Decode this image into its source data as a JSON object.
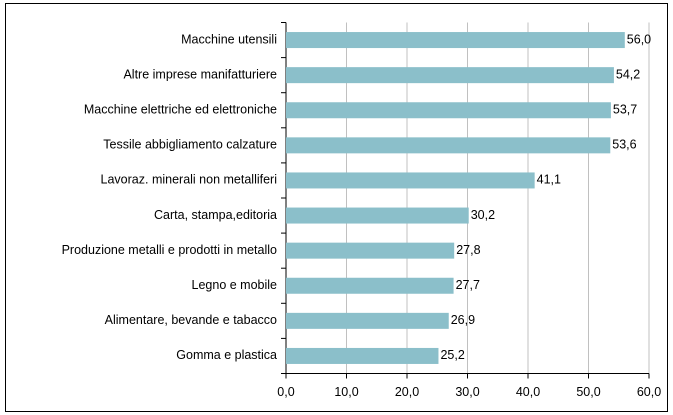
{
  "chart_data": {
    "type": "bar",
    "orientation": "horizontal",
    "categories": [
      "Macchine utensili",
      "Altre imprese manifatturiere",
      "Macchine elettriche ed elettroniche",
      "Tessile abbigliamento calzature",
      "Lavoraz. minerali non metalliferi",
      "Carta, stampa,editoria",
      "Produzione metalli e prodotti in metallo",
      "Legno e mobile",
      "Alimentare, bevande e tabacco",
      "Gomma e plastica"
    ],
    "values": [
      56.0,
      54.2,
      53.7,
      53.6,
      41.1,
      30.2,
      27.8,
      27.7,
      26.9,
      25.2
    ],
    "value_labels": [
      "56,0",
      "54,2",
      "53,7",
      "53,6",
      "41,1",
      "30,2",
      "27,8",
      "27,7",
      "26,9",
      "25,2"
    ],
    "color": "#8bbfca",
    "xlim": [
      0,
      60
    ],
    "xticks": [
      {
        "value": 0,
        "label": "0,0"
      },
      {
        "value": 10,
        "label": "10,0"
      },
      {
        "value": 20,
        "label": "20,0"
      },
      {
        "value": 30,
        "label": "30,0"
      },
      {
        "value": 40,
        "label": "40,0"
      },
      {
        "value": 50,
        "label": "50,0"
      },
      {
        "value": 60,
        "label": "60,0"
      }
    ],
    "grid": true
  }
}
